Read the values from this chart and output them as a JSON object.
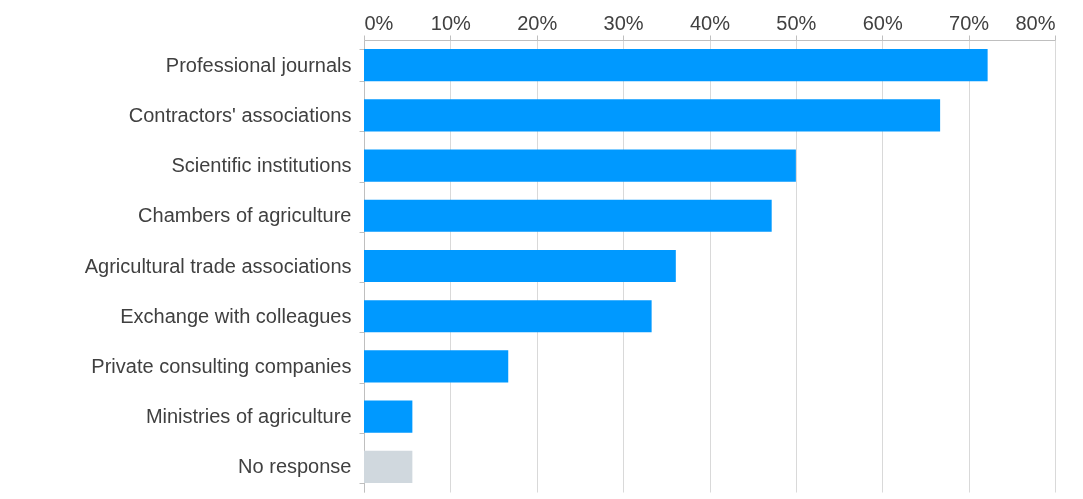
{
  "chart_data": {
    "type": "bar",
    "orientation": "horizontal",
    "categories": [
      "Professional journals",
      "Contractors' associations",
      "Scientific institutions",
      "Chambers of agriculture",
      "Agricultural trade associations",
      "Exchange with colleagues",
      "Private consulting companies",
      "Ministries of agriculture",
      "No response"
    ],
    "values": [
      72.2,
      66.7,
      50.0,
      47.2,
      36.1,
      33.3,
      16.7,
      5.6,
      5.6
    ],
    "colors": [
      "#0099ff",
      "#0099ff",
      "#0099ff",
      "#0099ff",
      "#0099ff",
      "#0099ff",
      "#0099ff",
      "#0099ff",
      "#d0d8de"
    ],
    "xlim": [
      0,
      80
    ],
    "xticks": [
      {
        "value": 0,
        "label": "0%"
      },
      {
        "value": 10,
        "label": "10%"
      },
      {
        "value": 20,
        "label": "20%"
      },
      {
        "value": 30,
        "label": "30%"
      },
      {
        "value": 40,
        "label": "40%"
      },
      {
        "value": 50,
        "label": "50%"
      },
      {
        "value": 60,
        "label": "60%"
      },
      {
        "value": 70,
        "label": "70%"
      },
      {
        "value": 80,
        "label": "80%"
      }
    ],
    "grid": "x"
  }
}
